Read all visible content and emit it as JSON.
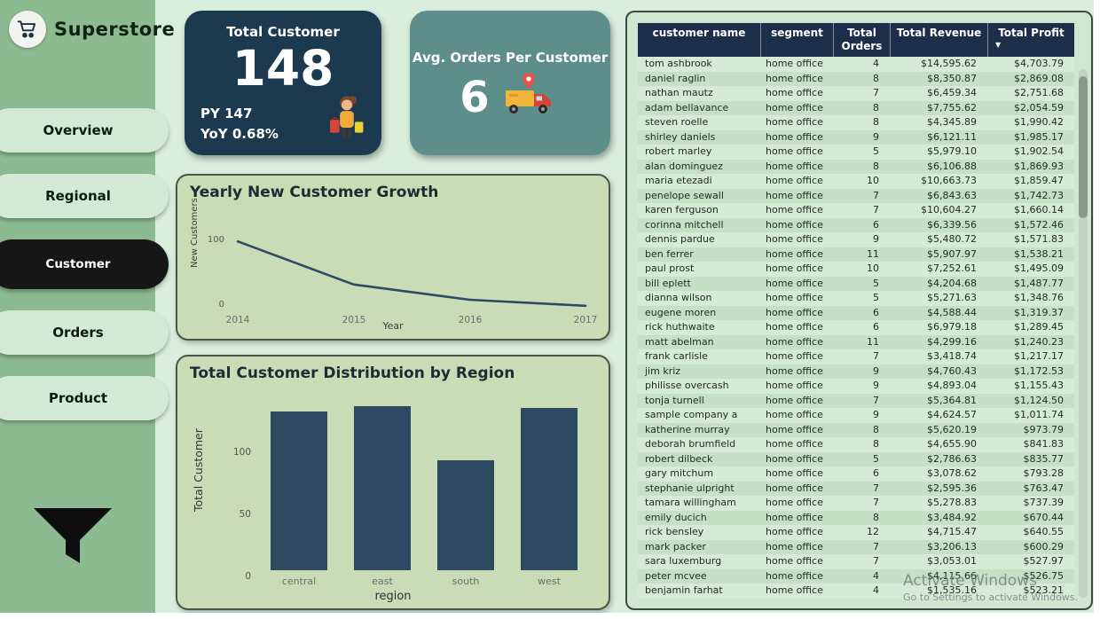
{
  "app": {
    "title": "Superstore"
  },
  "colors": {
    "background": "#d9eedd",
    "sidebar": "#8dbb91",
    "card_navy": "#1b3a50",
    "card_teal": "#5e8e8c",
    "panel_green": "#c8ddb6",
    "chart_ink": "#2e4a63",
    "table_header": "#1c2e4a",
    "active_nav": "#161616"
  },
  "sidebar": {
    "logo": "Superstore",
    "items": [
      {
        "label": "Overview",
        "active": false
      },
      {
        "label": "Regional",
        "active": false
      },
      {
        "label": "Customer",
        "active": true
      },
      {
        "label": "Orders",
        "active": false
      },
      {
        "label": "Product",
        "active": false
      }
    ]
  },
  "kpi": {
    "total_customer": {
      "title": "Total Customer",
      "value": "148",
      "py": "PY 147",
      "yoy": "YoY 0.68%"
    },
    "avg_orders": {
      "title": "Avg. Orders Per Customer",
      "value": "6"
    }
  },
  "chart_data": [
    {
      "type": "line",
      "title": "Yearly New Customer Growth",
      "x": [
        2014,
        2015,
        2016,
        2017
      ],
      "values": [
        100,
        35,
        12,
        3
      ],
      "xlabel": "Year",
      "ylabel": "New Customers",
      "yticks": [
        0,
        100
      ],
      "ylim": [
        0,
        115
      ],
      "color": "#2e4a63",
      "grid": false,
      "legend": "none"
    },
    {
      "type": "bar",
      "title": "Total Customer Distribution by Region",
      "categories": [
        "central",
        "east",
        "south",
        "west"
      ],
      "values": [
        124,
        128,
        86,
        127
      ],
      "xlabel": "region",
      "ylabel": "Total Customer",
      "yticks": [
        0,
        50,
        100
      ],
      "ylim": [
        0,
        135
      ],
      "color": "#2e4a63",
      "grid": false,
      "legend": "none"
    }
  ],
  "table": {
    "columns": [
      "customer name",
      "segment",
      "Total Orders",
      "Total Revenue",
      "Total Profit"
    ],
    "sort_column": "Total Profit",
    "sort_indicator": "▼",
    "rows": [
      [
        "tom ashbrook",
        "home office",
        "4",
        "$14,595.62",
        "$4,703.79"
      ],
      [
        "daniel raglin",
        "home office",
        "8",
        "$8,350.87",
        "$2,869.08"
      ],
      [
        "nathan mautz",
        "home office",
        "7",
        "$6,459.34",
        "$2,751.68"
      ],
      [
        "adam bellavance",
        "home office",
        "8",
        "$7,755.62",
        "$2,054.59"
      ],
      [
        "steven roelle",
        "home office",
        "8",
        "$4,345.89",
        "$1,990.42"
      ],
      [
        "shirley daniels",
        "home office",
        "9",
        "$6,121.11",
        "$1,985.17"
      ],
      [
        "robert marley",
        "home office",
        "5",
        "$5,979.10",
        "$1,902.54"
      ],
      [
        "alan dominguez",
        "home office",
        "8",
        "$6,106.88",
        "$1,869.93"
      ],
      [
        "maria etezadi",
        "home office",
        "10",
        "$10,663.73",
        "$1,859.47"
      ],
      [
        "penelope sewall",
        "home office",
        "7",
        "$6,843.63",
        "$1,742.73"
      ],
      [
        "karen ferguson",
        "home office",
        "7",
        "$10,604.27",
        "$1,660.14"
      ],
      [
        "corinna mitchell",
        "home office",
        "6",
        "$6,339.56",
        "$1,572.46"
      ],
      [
        "dennis pardue",
        "home office",
        "9",
        "$5,480.72",
        "$1,571.83"
      ],
      [
        "ben ferrer",
        "home office",
        "11",
        "$5,907.97",
        "$1,538.21"
      ],
      [
        "paul prost",
        "home office",
        "10",
        "$7,252.61",
        "$1,495.09"
      ],
      [
        "bill eplett",
        "home office",
        "5",
        "$4,204.68",
        "$1,487.77"
      ],
      [
        "dianna wilson",
        "home office",
        "5",
        "$5,271.63",
        "$1,348.76"
      ],
      [
        "eugene moren",
        "home office",
        "6",
        "$4,588.44",
        "$1,319.37"
      ],
      [
        "rick huthwaite",
        "home office",
        "6",
        "$6,979.18",
        "$1,289.45"
      ],
      [
        "matt abelman",
        "home office",
        "11",
        "$4,299.16",
        "$1,240.23"
      ],
      [
        "frank carlisle",
        "home office",
        "7",
        "$3,418.74",
        "$1,217.17"
      ],
      [
        "jim kriz",
        "home office",
        "9",
        "$4,760.43",
        "$1,172.53"
      ],
      [
        "philisse overcash",
        "home office",
        "9",
        "$4,893.04",
        "$1,155.43"
      ],
      [
        "tonja turnell",
        "home office",
        "7",
        "$5,364.81",
        "$1,124.50"
      ],
      [
        "sample company a",
        "home office",
        "9",
        "$4,624.57",
        "$1,011.74"
      ],
      [
        "katherine murray",
        "home office",
        "8",
        "$5,620.19",
        "$973.79"
      ],
      [
        "deborah brumfield",
        "home office",
        "8",
        "$4,655.90",
        "$841.83"
      ],
      [
        "robert dilbeck",
        "home office",
        "5",
        "$2,786.63",
        "$835.77"
      ],
      [
        "gary mitchum",
        "home office",
        "6",
        "$3,078.62",
        "$793.28"
      ],
      [
        "stephanie ulpright",
        "home office",
        "7",
        "$2,595.36",
        "$763.47"
      ],
      [
        "tamara willingham",
        "home office",
        "7",
        "$5,278.83",
        "$737.39"
      ],
      [
        "emily ducich",
        "home office",
        "8",
        "$3,484.92",
        "$670.44"
      ],
      [
        "rick bensley",
        "home office",
        "12",
        "$4,715.47",
        "$640.55"
      ],
      [
        "mark packer",
        "home office",
        "7",
        "$3,206.13",
        "$600.29"
      ],
      [
        "sara luxemburg",
        "home office",
        "7",
        "$3,053.01",
        "$527.97"
      ],
      [
        "peter mcvee",
        "home office",
        "4",
        "$4,115.66",
        "$526.75"
      ],
      [
        "benjamin farhat",
        "home office",
        "4",
        "$1,535.16",
        "$523.21"
      ]
    ]
  },
  "watermark": {
    "line1": "Activate Windows",
    "line2": "Go to Settings to activate Windows."
  }
}
